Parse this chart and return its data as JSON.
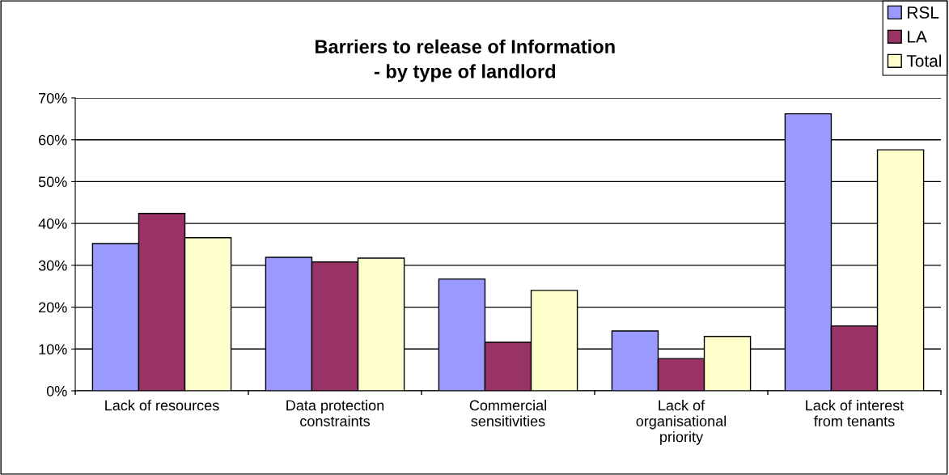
{
  "chart_data": {
    "type": "bar",
    "title": "Barriers to release of Information\n- by type of landlord",
    "categories": [
      "Lack of resources",
      "Data protection\nconstraints",
      "Commercial\nsensitivities",
      "Lack of\norganisational\npriority",
      "Lack of interest\nfrom tenants"
    ],
    "series": [
      {
        "name": "RSL",
        "color": "#9999ff",
        "values": [
          35.2,
          31.9,
          26.7,
          14.3,
          66.2
        ]
      },
      {
        "name": "LA",
        "color": "#993366",
        "values": [
          42.4,
          30.8,
          11.6,
          7.7,
          15.5
        ]
      },
      {
        "name": "Total",
        "color": "#ffffcc",
        "values": [
          36.6,
          31.7,
          24.0,
          13.0,
          57.6
        ]
      }
    ],
    "ylim": [
      0,
      70
    ],
    "yticks": [
      {
        "value": 0,
        "label": "0%"
      },
      {
        "value": 10,
        "label": "10%"
      },
      {
        "value": 20,
        "label": "20%"
      },
      {
        "value": 30,
        "label": "30%"
      },
      {
        "value": 40,
        "label": "40%"
      },
      {
        "value": 50,
        "label": "50%"
      },
      {
        "value": 60,
        "label": "60%"
      },
      {
        "value": 70,
        "label": "70%"
      }
    ],
    "grid": "y",
    "legend": "top right"
  }
}
